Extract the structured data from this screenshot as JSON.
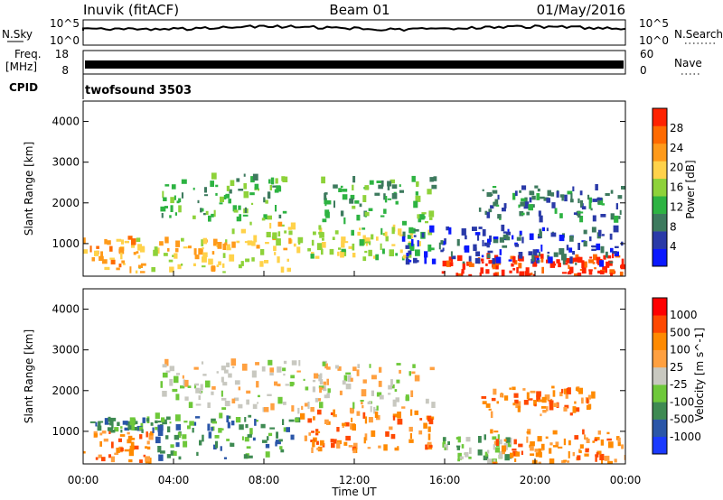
{
  "header": {
    "station": "Inuvik (fitACF)",
    "beam": "Beam 01",
    "date": "01/May/2016"
  },
  "top_panels": {
    "nsky_label": "N.Sky",
    "nsky_ticks_left": [
      "10^5",
      "10^0"
    ],
    "nsky_ticks_right": [
      "10^5",
      "10^0"
    ],
    "nsearch_label": "N.Search",
    "freq_label_1": "Freq.",
    "freq_label_2": "[MHz]",
    "freq_ticks": [
      "18",
      "8"
    ],
    "nave_ticks": [
      "60",
      "0"
    ],
    "nave_label": "Nave",
    "cpid_label": "CPID",
    "cpid_value": "twofsound 3503"
  },
  "chart_data": [
    {
      "type": "heatmap",
      "title": "",
      "ylabel": "Slant Range [km]",
      "y_ticks": [
        "4000",
        "3000",
        "2000",
        "1000"
      ],
      "ylim": [
        200,
        4500
      ],
      "colorbar_label": "Power [dB]",
      "colorbar_ticks": [
        "28",
        "24",
        "20",
        "16",
        "12",
        "8",
        "4"
      ],
      "colors": [
        "#0a18ff",
        "#2a3aa8",
        "#3d7a5e",
        "#2db342",
        "#8ed23a",
        "#ffd24a",
        "#ff9a1a",
        "#ff6a00",
        "#ff2200"
      ],
      "regions": [
        {
          "t": [
            0.0,
            2.3
          ],
          "r": [
            250,
            1150
          ],
          "level": 6
        },
        {
          "t": [
            2.3,
            6.5
          ],
          "r": [
            300,
            1100
          ],
          "level": 5
        },
        {
          "t": [
            6.5,
            9.5
          ],
          "r": [
            250,
            1500
          ],
          "level": 5
        },
        {
          "t": [
            3.3,
            9.0
          ],
          "r": [
            1600,
            2700
          ],
          "level": 3
        },
        {
          "t": [
            10.5,
            15.5
          ],
          "r": [
            1500,
            2600
          ],
          "level": 3
        },
        {
          "t": [
            9.5,
            15.5
          ],
          "r": [
            600,
            1400
          ],
          "level": 4
        },
        {
          "t": [
            15.8,
            24.0
          ],
          "r": [
            200,
            700
          ],
          "level": 8
        },
        {
          "t": [
            17.5,
            24.0
          ],
          "r": [
            1600,
            2400
          ],
          "level": 2
        },
        {
          "t": [
            14.0,
            24.0
          ],
          "r": [
            500,
            1400
          ],
          "level": 1
        }
      ]
    },
    {
      "type": "heatmap",
      "title": "",
      "xlabel": "Time UT",
      "ylabel": "Slant Range [km]",
      "x_ticks": [
        "00:00",
        "04:00",
        "08:00",
        "12:00",
        "16:00",
        "20:00",
        "00:00"
      ],
      "y_ticks": [
        "4000",
        "3000",
        "2000",
        "1000"
      ],
      "xlim": [
        0,
        24
      ],
      "ylim": [
        200,
        4500
      ],
      "colorbar_label": "Velocity [m s^-1]",
      "colorbar_ticks": [
        "1000",
        "500",
        "100",
        "25",
        "-25",
        "-100",
        "-500",
        "-1000"
      ],
      "colors": [
        "#1a3aff",
        "#2a56a8",
        "#3e8a52",
        "#6ec83a",
        "#c8c8c0",
        "#ffa040",
        "#ff8a00",
        "#ff4800",
        "#ff0000"
      ],
      "regions": [
        {
          "t": [
            0.0,
            3.0
          ],
          "r": [
            250,
            1000
          ],
          "level": 6
        },
        {
          "t": [
            0.3,
            3.5
          ],
          "r": [
            1000,
            1300
          ],
          "level": 2
        },
        {
          "t": [
            3.3,
            15.5
          ],
          "r": [
            1500,
            2700
          ],
          "level": 4
        },
        {
          "t": [
            3.0,
            9.5
          ],
          "r": [
            300,
            1400
          ],
          "level": 2
        },
        {
          "t": [
            9.5,
            15.5
          ],
          "r": [
            500,
            1500
          ],
          "level": 6
        },
        {
          "t": [
            15.8,
            19.0
          ],
          "r": [
            200,
            900
          ],
          "level": 3
        },
        {
          "t": [
            18.0,
            24.0
          ],
          "r": [
            200,
            1000
          ],
          "level": 6
        },
        {
          "t": [
            17.5,
            22.5
          ],
          "r": [
            1400,
            2100
          ],
          "level": 6
        }
      ]
    }
  ]
}
